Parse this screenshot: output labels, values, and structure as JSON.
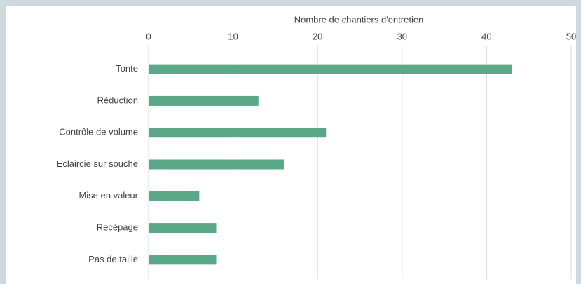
{
  "chart_data": {
    "type": "barh",
    "xlabel": "Nombre de chantiers d'entretien",
    "categories": [
      "Tonte",
      "Réduction",
      "Contrôle de volume",
      "Eclaircie sur souche",
      "Mise en valeur",
      "Recépage",
      "Pas de taille"
    ],
    "values": [
      43,
      13,
      21,
      16,
      6,
      8,
      8
    ],
    "color": "#5aa888",
    "xlim": [
      0,
      50
    ],
    "xticks": [
      0,
      10,
      20,
      30,
      40,
      50
    ],
    "grid": true
  }
}
